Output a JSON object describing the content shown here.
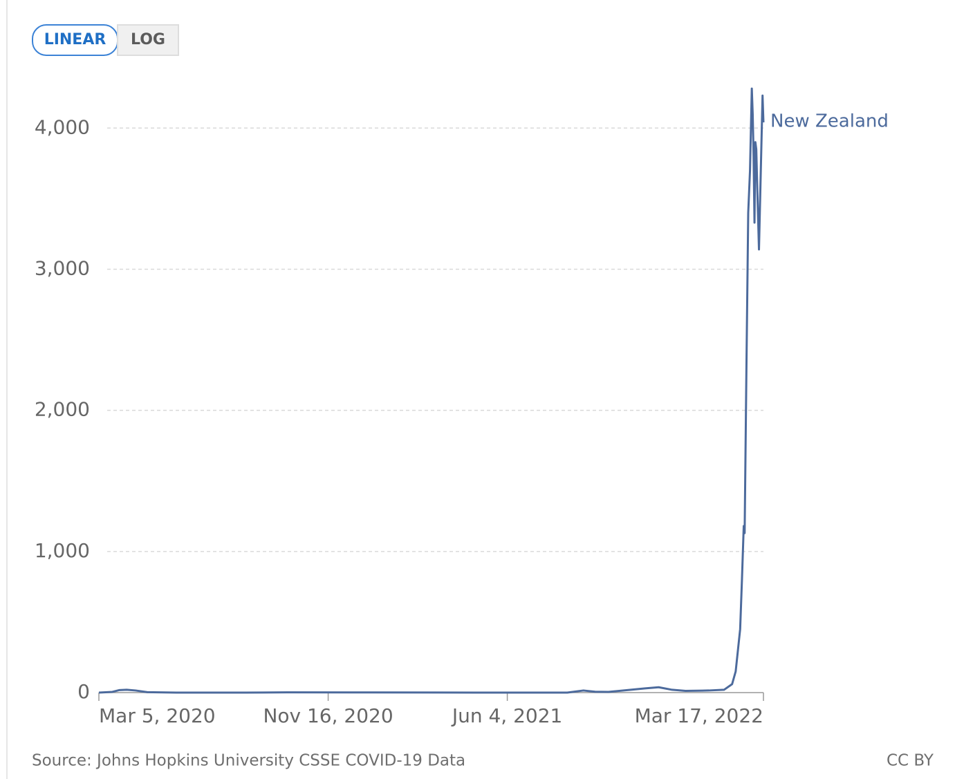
{
  "chart_data": {
    "type": "line",
    "buttons": [
      "LINEAR",
      "LOG"
    ],
    "active_button": 0,
    "log_scale": false,
    "x": [
      "2020-03-05",
      "2020-03-20",
      "2020-03-28",
      "2020-04-05",
      "2020-04-15",
      "2020-04-28",
      "2020-06-01",
      "2020-08-15",
      "2020-10-01",
      "2021-01-01",
      "2021-05-01",
      "2021-08-10",
      "2021-08-28",
      "2021-09-10",
      "2021-09-25",
      "2021-10-20",
      "2021-11-05",
      "2021-11-20",
      "2021-12-05",
      "2021-12-20",
      "2022-01-15",
      "2022-02-01",
      "2022-02-10",
      "2022-02-14",
      "2022-02-17",
      "2022-02-19",
      "2022-02-21",
      "2022-02-23",
      "2022-02-24",
      "2022-02-26",
      "2022-02-28",
      "2022-03-02",
      "2022-03-04",
      "2022-03-05",
      "2022-03-06",
      "2022-03-07",
      "2022-03-08",
      "2022-03-09",
      "2022-03-10",
      "2022-03-12",
      "2022-03-16",
      "2022-03-17"
    ],
    "series": [
      {
        "name": "New Zealand",
        "color": "#4c6a9c",
        "values": [
          0,
          5,
          18,
          20,
          15,
          3,
          0,
          0,
          2,
          1,
          0,
          0,
          15,
          6,
          5,
          20,
          30,
          38,
          20,
          12,
          15,
          20,
          60,
          150,
          330,
          450,
          800,
          1180,
          1130,
          2300,
          3400,
          3700,
          4280,
          4100,
          3800,
          3330,
          3900,
          3850,
          3600,
          3140,
          4230,
          4040
        ]
      }
    ],
    "xlim": [
      "2020-03-05",
      "2022-03-17"
    ],
    "xticks": [
      {
        "value": "2020-03-05",
        "label": "Mar 5, 2020"
      },
      {
        "value": "2020-11-16",
        "label": "Nov 16, 2020"
      },
      {
        "value": "2021-06-04",
        "label": "Jun 4, 2021"
      },
      {
        "value": "2022-03-17",
        "label": "Mar 17, 2022"
      }
    ],
    "ylim": [
      0,
      4300
    ],
    "yticks": [
      0,
      {
        "value": 1000,
        "label": "1,000"
      },
      {
        "value": 2000,
        "label": "2,000"
      },
      {
        "value": 3000,
        "label": "3,000"
      },
      {
        "value": 4000,
        "label": "4,000"
      }
    ],
    "grid": true,
    "source": "Source: Johns Hopkins University CSSE COVID-19 Data",
    "license": "CC BY"
  }
}
